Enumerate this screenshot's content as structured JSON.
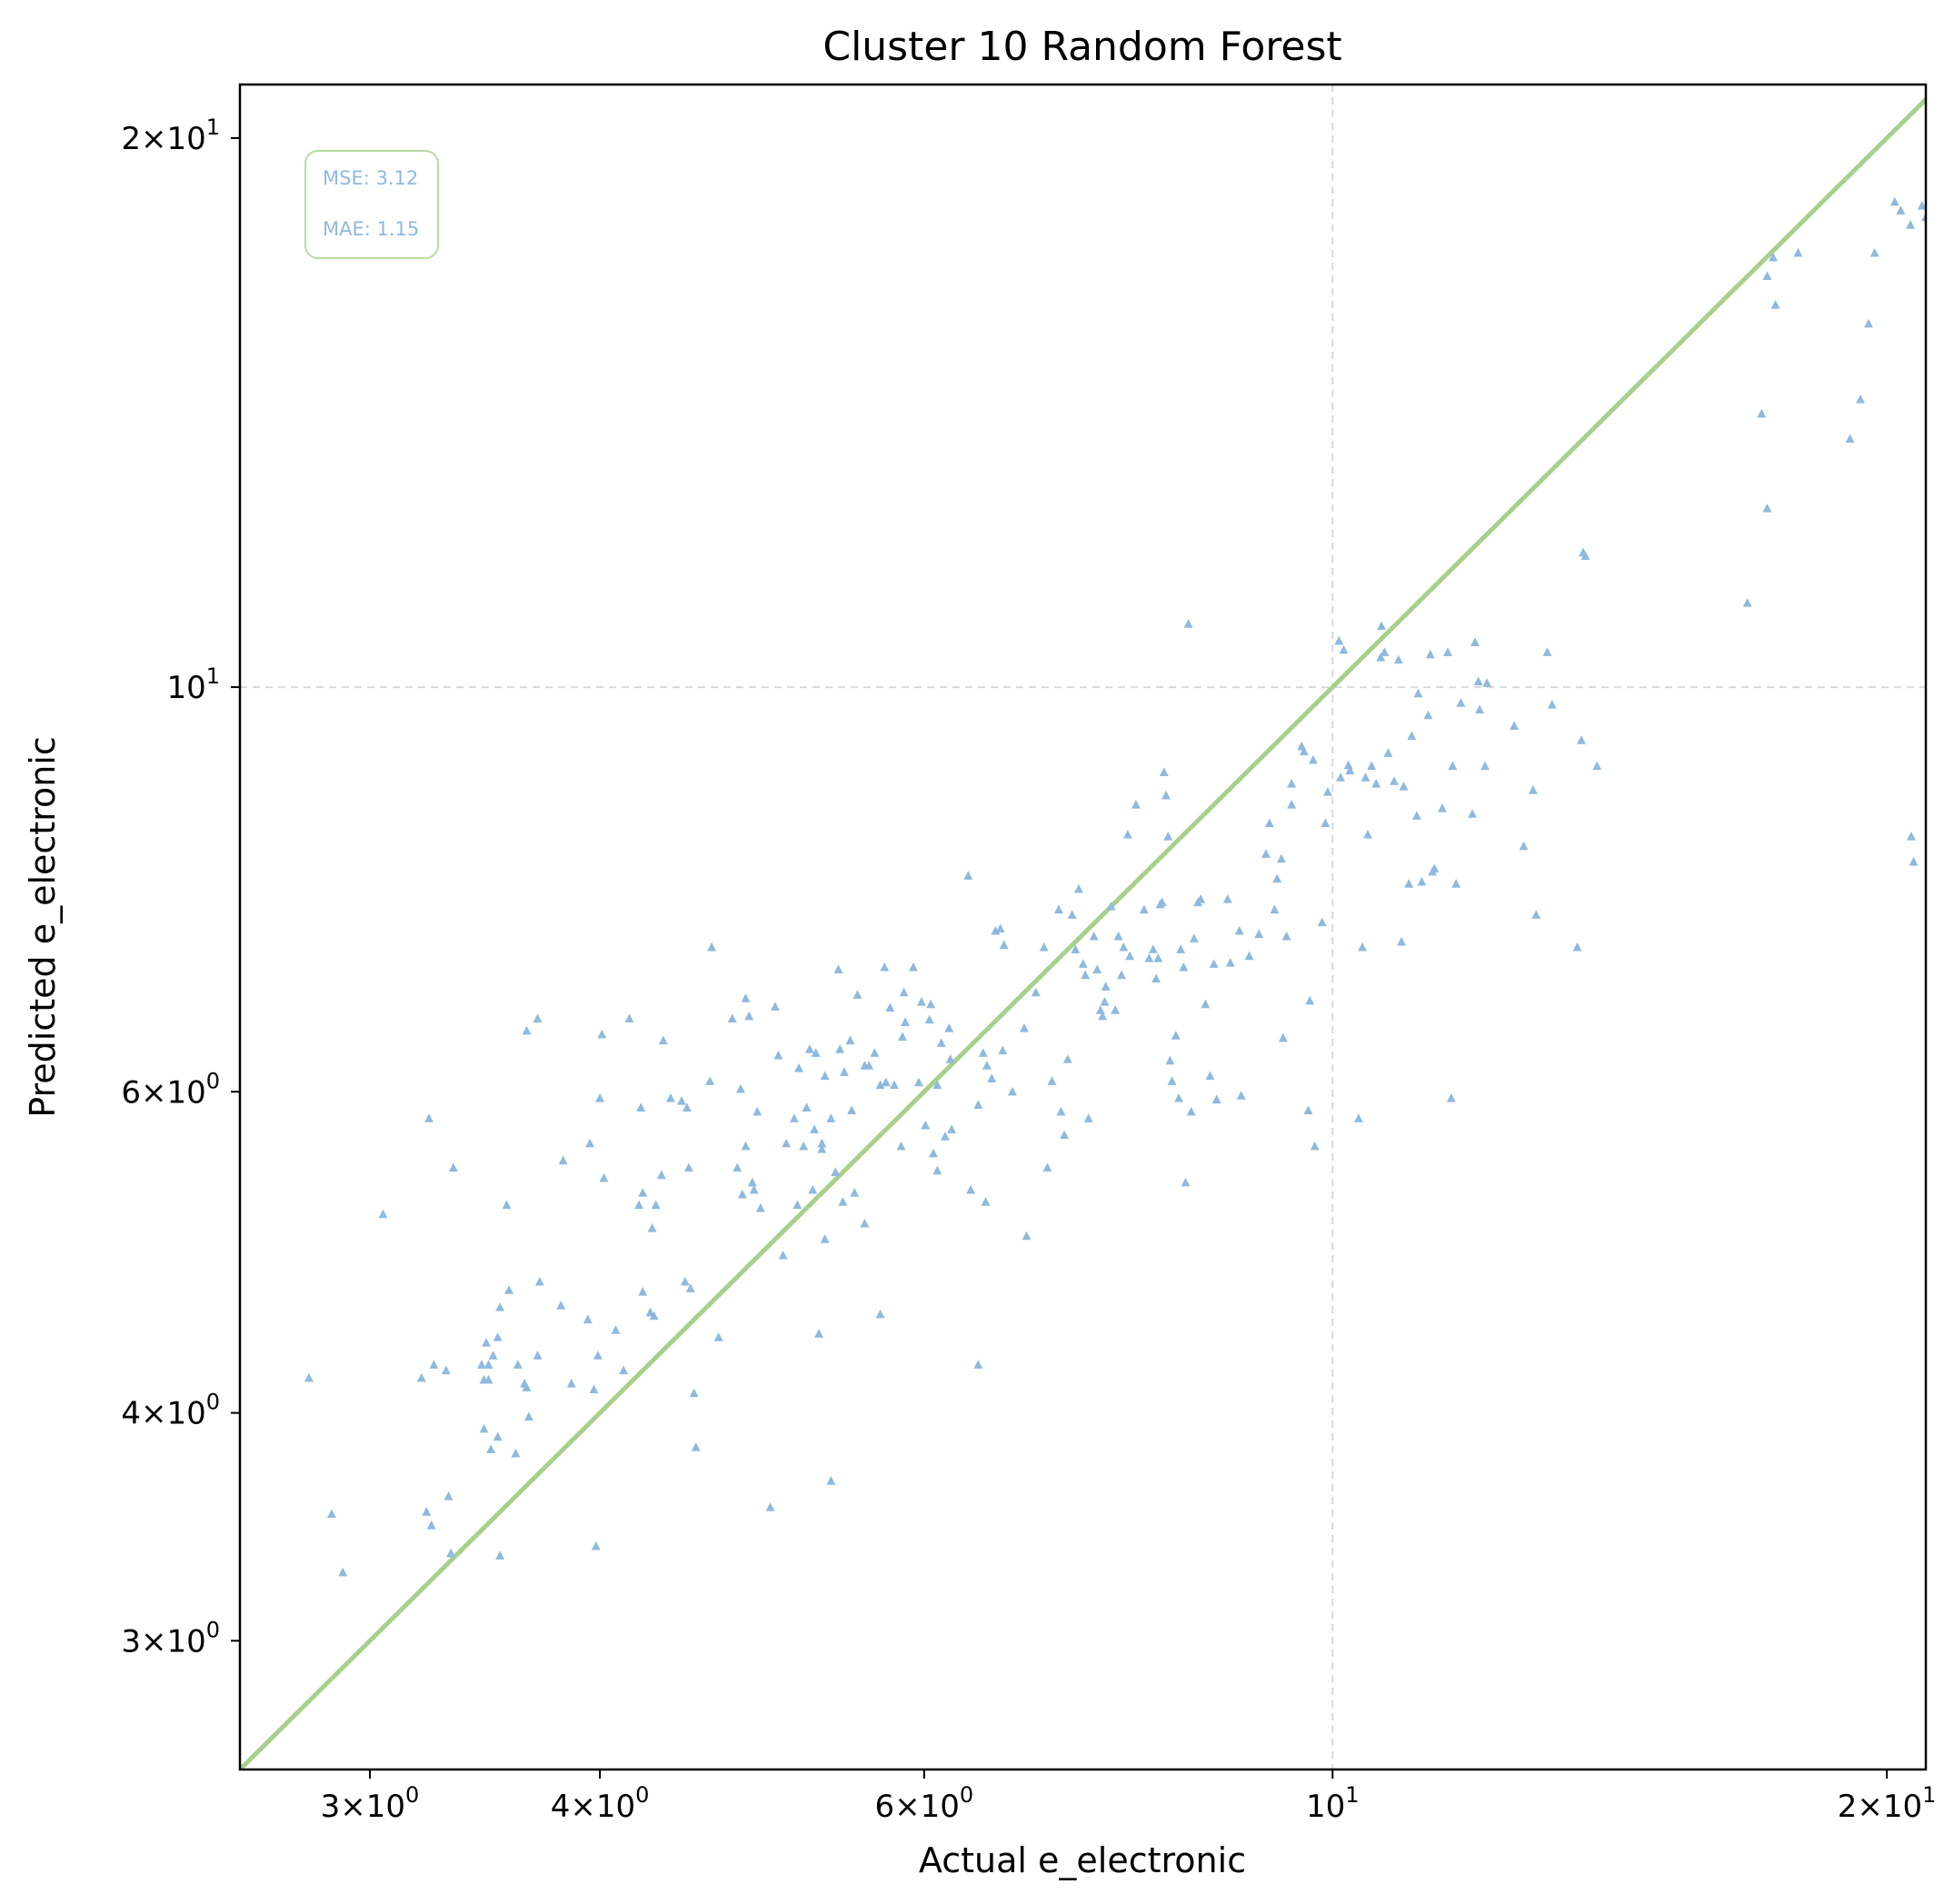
{
  "chart_data": {
    "type": "scatter",
    "title": "Cluster 10 Random Forest",
    "xlabel": "Actual e_electronic",
    "ylabel": "Predicted e_electronic",
    "xscale": "log",
    "yscale": "log",
    "xlim": [
      2.55,
      21.0
    ],
    "ylim": [
      2.55,
      21.4
    ],
    "x_ticks": [
      {
        "value": 3,
        "mant": "3",
        "exp": "0"
      },
      {
        "value": 4,
        "mant": "4",
        "exp": "0"
      },
      {
        "value": 6,
        "mant": "6",
        "exp": "0"
      },
      {
        "value": 10,
        "mant": "",
        "exp": "1"
      },
      {
        "value": 20,
        "mant": "2",
        "exp": "1"
      }
    ],
    "y_ticks": [
      {
        "value": 3,
        "mant": "3",
        "exp": "0"
      },
      {
        "value": 4,
        "mant": "4",
        "exp": "0"
      },
      {
        "value": 6,
        "mant": "6",
        "exp": "0"
      },
      {
        "value": 10,
        "mant": "",
        "exp": "1"
      },
      {
        "value": 20,
        "mant": "2",
        "exp": "1"
      }
    ],
    "grid_lines": [
      10
    ],
    "reference_line": "y = x",
    "metrics": [
      {
        "label": "MSE: 3.12"
      },
      {
        "label": "MAE: 1.15"
      }
    ],
    "metrics_box_position": "top-left",
    "colors": {
      "points": "#8fb9de",
      "identity_line": "#a8d08d",
      "grid": "#d9d9d9",
      "metrics_text": "#8fb9de",
      "metrics_border": "#b6dca0"
    },
    "points": [
      [
        2.54,
        4.7
      ],
      [
        2.78,
        4.18
      ],
      [
        2.86,
        3.52
      ],
      [
        2.9,
        3.27
      ],
      [
        3.05,
        5.14
      ],
      [
        3.2,
        4.18
      ],
      [
        3.22,
        3.53
      ],
      [
        3.24,
        3.47
      ],
      [
        3.23,
        5.8
      ],
      [
        3.25,
        4.25
      ],
      [
        3.3,
        4.22
      ],
      [
        3.31,
        3.6
      ],
      [
        3.32,
        3.35
      ],
      [
        3.33,
        5.45
      ],
      [
        3.45,
        4.25
      ],
      [
        3.46,
        3.92
      ],
      [
        3.46,
        4.17
      ],
      [
        3.47,
        4.37
      ],
      [
        3.48,
        4.17
      ],
      [
        3.49,
        3.82
      ],
      [
        3.48,
        4.25
      ],
      [
        3.52,
        4.4
      ],
      [
        3.5,
        4.3
      ],
      [
        3.52,
        3.88
      ],
      [
        3.53,
        4.57
      ],
      [
        3.53,
        3.34
      ],
      [
        3.56,
        5.2
      ],
      [
        3.57,
        4.67
      ],
      [
        3.6,
        3.8
      ],
      [
        3.61,
        4.25
      ],
      [
        3.64,
        4.15
      ],
      [
        3.65,
        4.13
      ],
      [
        3.65,
        6.48
      ],
      [
        3.66,
        3.98
      ],
      [
        3.7,
        6.58
      ],
      [
        3.71,
        4.72
      ],
      [
        3.7,
        4.3
      ],
      [
        3.81,
        4.58
      ],
      [
        3.82,
        5.5
      ],
      [
        3.86,
        4.15
      ],
      [
        3.95,
        5.62
      ],
      [
        3.94,
        4.5
      ],
      [
        3.97,
        4.12
      ],
      [
        3.99,
        4.3
      ],
      [
        4.0,
        5.95
      ],
      [
        4.01,
        6.45
      ],
      [
        3.98,
        3.38
      ],
      [
        4.02,
        5.38
      ],
      [
        4.08,
        4.44
      ],
      [
        4.12,
        4.22
      ],
      [
        4.15,
        6.58
      ],
      [
        4.2,
        5.2
      ],
      [
        4.22,
        5.28
      ],
      [
        4.22,
        4.66
      ],
      [
        4.21,
        5.88
      ],
      [
        4.26,
        4.54
      ],
      [
        4.28,
        4.52
      ],
      [
        4.27,
        5.05
      ],
      [
        4.29,
        5.2
      ],
      [
        4.32,
        5.4
      ],
      [
        4.33,
        6.4
      ],
      [
        4.37,
        5.95
      ],
      [
        4.43,
        5.93
      ],
      [
        4.46,
        5.88
      ],
      [
        4.45,
        4.72
      ],
      [
        4.48,
        4.68
      ],
      [
        4.47,
        5.45
      ],
      [
        4.51,
        3.83
      ],
      [
        4.5,
        4.1
      ],
      [
        4.59,
        6.08
      ],
      [
        4.64,
        4.4
      ],
      [
        4.6,
        7.2
      ],
      [
        4.72,
        6.58
      ],
      [
        4.77,
        6.02
      ],
      [
        4.75,
        5.45
      ],
      [
        4.8,
        5.6
      ],
      [
        4.78,
        5.27
      ],
      [
        4.8,
        6.75
      ],
      [
        4.85,
        5.3
      ],
      [
        4.84,
        5.35
      ],
      [
        4.82,
        6.6
      ],
      [
        4.87,
        5.85
      ],
      [
        4.89,
        5.18
      ],
      [
        4.95,
        3.55
      ],
      [
        4.98,
        6.68
      ],
      [
        5.0,
        6.28
      ],
      [
        5.03,
        4.88
      ],
      [
        5.05,
        5.62
      ],
      [
        5.1,
        5.8
      ],
      [
        5.13,
        6.18
      ],
      [
        5.12,
        5.2
      ],
      [
        5.16,
        5.6
      ],
      [
        5.18,
        5.88
      ],
      [
        5.2,
        6.33
      ],
      [
        5.22,
        5.3
      ],
      [
        5.24,
        6.3
      ],
      [
        5.23,
        5.72
      ],
      [
        5.26,
        4.42
      ],
      [
        5.28,
        5.62
      ],
      [
        5.28,
        5.58
      ],
      [
        5.3,
        4.98
      ],
      [
        5.3,
        6.12
      ],
      [
        5.34,
        5.8
      ],
      [
        5.37,
        5.42
      ],
      [
        5.34,
        3.67
      ],
      [
        5.4,
        6.33
      ],
      [
        5.42,
        5.22
      ],
      [
        5.39,
        7.0
      ],
      [
        5.43,
        6.15
      ],
      [
        5.47,
        6.4
      ],
      [
        5.48,
        5.86
      ],
      [
        5.5,
        5.28
      ],
      [
        5.52,
        6.78
      ],
      [
        5.57,
        5.08
      ],
      [
        5.57,
        6.2
      ],
      [
        5.6,
        6.2
      ],
      [
        5.64,
        6.3
      ],
      [
        5.68,
        4.53
      ],
      [
        5.68,
        6.05
      ],
      [
        5.72,
        6.07
      ],
      [
        5.71,
        7.02
      ],
      [
        5.75,
        6.67
      ],
      [
        5.78,
        6.05
      ],
      [
        5.83,
        5.6
      ],
      [
        5.84,
        6.43
      ],
      [
        5.86,
        6.55
      ],
      [
        5.85,
        6.8
      ],
      [
        5.92,
        7.02
      ],
      [
        5.96,
        6.07
      ],
      [
        5.98,
        6.72
      ],
      [
        6.01,
        5.75
      ],
      [
        6.04,
        6.57
      ],
      [
        6.05,
        6.7
      ],
      [
        6.07,
        5.55
      ],
      [
        6.1,
        5.43
      ],
      [
        6.1,
        6.05
      ],
      [
        6.13,
        6.38
      ],
      [
        6.16,
        5.67
      ],
      [
        6.2,
        6.25
      ],
      [
        6.19,
        6.5
      ],
      [
        6.21,
        5.72
      ],
      [
        6.34,
        7.88
      ],
      [
        6.36,
        5.3
      ],
      [
        6.42,
        5.9
      ],
      [
        6.42,
        4.25
      ],
      [
        6.46,
        6.3
      ],
      [
        6.48,
        5.22
      ],
      [
        6.49,
        6.2
      ],
      [
        6.53,
        6.1
      ],
      [
        6.56,
        7.35
      ],
      [
        6.6,
        7.37
      ],
      [
        6.62,
        6.32
      ],
      [
        6.63,
        7.22
      ],
      [
        6.7,
        6.0
      ],
      [
        6.8,
        6.5
      ],
      [
        6.82,
        5.0
      ],
      [
        6.9,
        6.8
      ],
      [
        6.97,
        7.2
      ],
      [
        7.0,
        5.45
      ],
      [
        7.04,
        6.08
      ],
      [
        7.1,
        7.55
      ],
      [
        7.12,
        5.85
      ],
      [
        7.15,
        5.68
      ],
      [
        7.18,
        6.25
      ],
      [
        7.22,
        7.5
      ],
      [
        7.25,
        7.18
      ],
      [
        7.28,
        7.75
      ],
      [
        7.32,
        7.05
      ],
      [
        7.34,
        6.95
      ],
      [
        7.37,
        5.8
      ],
      [
        7.42,
        7.3
      ],
      [
        7.45,
        7.0
      ],
      [
        7.48,
        6.65
      ],
      [
        7.5,
        6.6
      ],
      [
        7.52,
        6.72
      ],
      [
        7.53,
        6.85
      ],
      [
        7.58,
        7.58
      ],
      [
        7.62,
        6.65
      ],
      [
        7.65,
        7.3
      ],
      [
        7.68,
        6.95
      ],
      [
        7.7,
        7.2
      ],
      [
        7.74,
        8.3
      ],
      [
        7.76,
        7.12
      ],
      [
        7.82,
        8.62
      ],
      [
        7.9,
        7.55
      ],
      [
        7.95,
        7.1
      ],
      [
        7.99,
        7.18
      ],
      [
        8.02,
        6.92
      ],
      [
        8.04,
        7.1
      ],
      [
        8.06,
        7.6
      ],
      [
        8.08,
        7.62
      ],
      [
        8.1,
        8.98
      ],
      [
        8.12,
        8.72
      ],
      [
        8.14,
        8.28
      ],
      [
        8.16,
        6.24
      ],
      [
        8.18,
        6.08
      ],
      [
        8.22,
        6.44
      ],
      [
        8.25,
        5.95
      ],
      [
        8.27,
        7.18
      ],
      [
        8.3,
        7.02
      ],
      [
        8.32,
        5.35
      ],
      [
        8.35,
        10.83
      ],
      [
        8.38,
        5.85
      ],
      [
        8.41,
        7.28
      ],
      [
        8.45,
        7.62
      ],
      [
        8.48,
        7.65
      ],
      [
        8.53,
        6.7
      ],
      [
        8.58,
        6.12
      ],
      [
        8.62,
        7.05
      ],
      [
        8.65,
        5.94
      ],
      [
        8.77,
        7.65
      ],
      [
        8.8,
        7.06
      ],
      [
        8.9,
        7.35
      ],
      [
        8.92,
        5.97
      ],
      [
        9.01,
        7.12
      ],
      [
        9.12,
        7.32
      ],
      [
        9.2,
        8.1
      ],
      [
        9.24,
        8.42
      ],
      [
        9.3,
        7.55
      ],
      [
        9.33,
        7.85
      ],
      [
        9.38,
        8.05
      ],
      [
        9.4,
        6.42
      ],
      [
        9.44,
        7.3
      ],
      [
        9.5,
        8.85
      ],
      [
        9.5,
        8.62
      ],
      [
        9.62,
        9.28
      ],
      [
        9.65,
        9.22
      ],
      [
        9.7,
        5.86
      ],
      [
        9.72,
        6.73
      ],
      [
        9.76,
        9.12
      ],
      [
        9.78,
        5.6
      ],
      [
        9.87,
        7.43
      ],
      [
        9.91,
        8.42
      ],
      [
        9.94,
        8.76
      ],
      [
        10.1,
        8.92
      ],
      [
        10.08,
        10.6
      ],
      [
        10.14,
        10.48
      ],
      [
        10.22,
        9.0
      ],
      [
        10.2,
        9.06
      ],
      [
        10.33,
        5.8
      ],
      [
        10.38,
        7.2
      ],
      [
        10.42,
        8.92
      ],
      [
        10.45,
        8.3
      ],
      [
        10.5,
        9.05
      ],
      [
        10.56,
        8.85
      ],
      [
        10.62,
        10.38
      ],
      [
        10.63,
        10.8
      ],
      [
        10.67,
        10.45
      ],
      [
        10.72,
        9.2
      ],
      [
        10.8,
        8.88
      ],
      [
        10.86,
        10.35
      ],
      [
        10.9,
        7.25
      ],
      [
        10.93,
        8.82
      ],
      [
        11.0,
        7.8
      ],
      [
        11.04,
        9.4
      ],
      [
        11.11,
        8.5
      ],
      [
        11.13,
        9.92
      ],
      [
        11.18,
        7.82
      ],
      [
        11.27,
        9.65
      ],
      [
        11.3,
        10.42
      ],
      [
        11.33,
        7.92
      ],
      [
        11.36,
        7.95
      ],
      [
        11.47,
        8.58
      ],
      [
        11.55,
        10.45
      ],
      [
        11.6,
        5.95
      ],
      [
        11.62,
        9.05
      ],
      [
        11.67,
        7.8
      ],
      [
        11.74,
        9.8
      ],
      [
        11.91,
        8.52
      ],
      [
        11.95,
        10.58
      ],
      [
        12.0,
        10.07
      ],
      [
        12.02,
        9.72
      ],
      [
        12.1,
        9.05
      ],
      [
        12.13,
        10.05
      ],
      [
        12.55,
        9.52
      ],
      [
        12.7,
        8.18
      ],
      [
        12.85,
        8.78
      ],
      [
        12.9,
        7.5
      ],
      [
        13.08,
        10.45
      ],
      [
        13.16,
        9.78
      ],
      [
        13.58,
        7.2
      ],
      [
        13.65,
        9.35
      ],
      [
        13.68,
        11.85
      ],
      [
        13.72,
        11.8
      ],
      [
        13.92,
        9.05
      ],
      [
        16.8,
        11.12
      ],
      [
        17.1,
        14.12
      ],
      [
        17.22,
        12.53
      ],
      [
        17.22,
        16.8
      ],
      [
        17.35,
        17.2
      ],
      [
        17.4,
        16.2
      ],
      [
        17.9,
        17.3
      ],
      [
        19.1,
        13.68
      ],
      [
        19.35,
        14.38
      ],
      [
        19.55,
        15.82
      ],
      [
        19.7,
        17.3
      ],
      [
        20.2,
        18.45
      ],
      [
        20.35,
        18.25
      ],
      [
        20.6,
        17.92
      ],
      [
        20.62,
        8.28
      ],
      [
        20.68,
        8.02
      ],
      [
        20.9,
        18.36
      ],
      [
        21.0,
        18.1
      ]
    ]
  }
}
